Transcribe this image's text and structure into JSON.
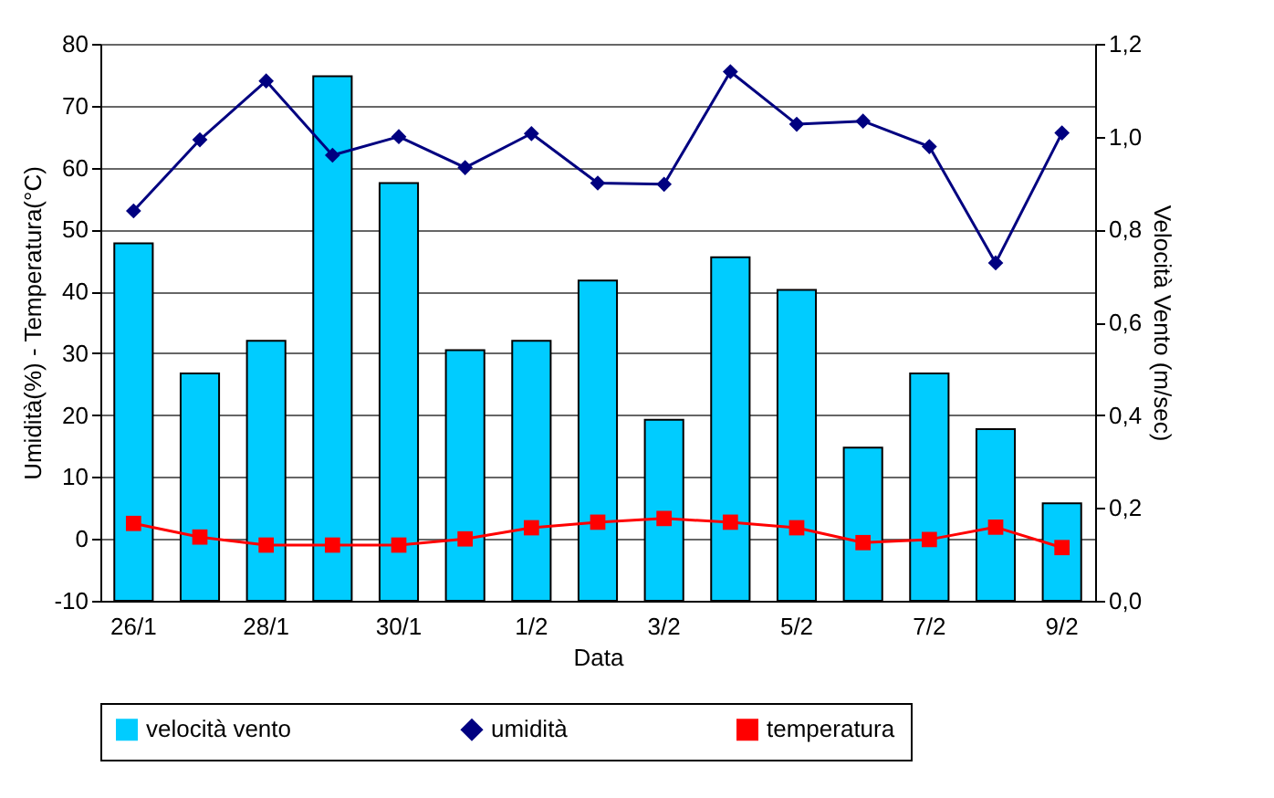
{
  "chart_data": {
    "type": "bar",
    "categories": [
      "26/1",
      null,
      "28/1",
      null,
      "30/1",
      null,
      "1/2",
      null,
      "3/2",
      null,
      "5/2",
      null,
      "7/2",
      null,
      "9/2"
    ],
    "xlabel": "Data",
    "ylabel": "Umidità(%) - Temperatura(°C)",
    "y2label": "Velocità Vento (m/sec)",
    "series": [
      {
        "name": "velocità vento",
        "axis": "y2",
        "color": "#00ccff",
        "values": [
          0.77,
          0.49,
          0.56,
          1.13,
          0.9,
          0.54,
          0.56,
          0.69,
          0.39,
          0.74,
          0.67,
          0.33,
          0.49,
          0.37,
          0.21
        ]
      },
      {
        "name": "umidità",
        "type": "line",
        "marker": "diamond",
        "color": "#000080",
        "values": [
          53,
          64.5,
          74,
          62,
          65,
          60,
          65.5,
          57.5,
          57.3,
          75.5,
          67,
          67.5,
          63.4,
          44.6,
          65.6
        ]
      },
      {
        "name": "temperatura",
        "type": "line",
        "marker": "square",
        "color": "#ff0000",
        "values": [
          2.5,
          0.3,
          -1,
          -1,
          -1,
          0,
          1.8,
          2.7,
          3.3,
          2.7,
          1.8,
          -0.6,
          -0.1,
          1.9,
          -1.4
        ]
      }
    ],
    "ylim": [
      -10,
      80
    ],
    "yticks": [
      -10,
      0,
      10,
      20,
      30,
      40,
      50,
      60,
      70,
      80
    ],
    "y2lim": [
      0,
      1.2
    ],
    "y2ticks": [
      {
        "value": 0,
        "label": "0,0"
      },
      {
        "value": 0.2,
        "label": "0,2"
      },
      {
        "value": 0.4,
        "label": "0,4"
      },
      {
        "value": 0.6,
        "label": "0,6"
      },
      {
        "value": 0.8,
        "label": "0,8"
      },
      {
        "value": 1.0,
        "label": "1,0"
      },
      {
        "value": 1.2,
        "label": "1,2"
      }
    ],
    "grid": "y",
    "legend": "bottom"
  }
}
